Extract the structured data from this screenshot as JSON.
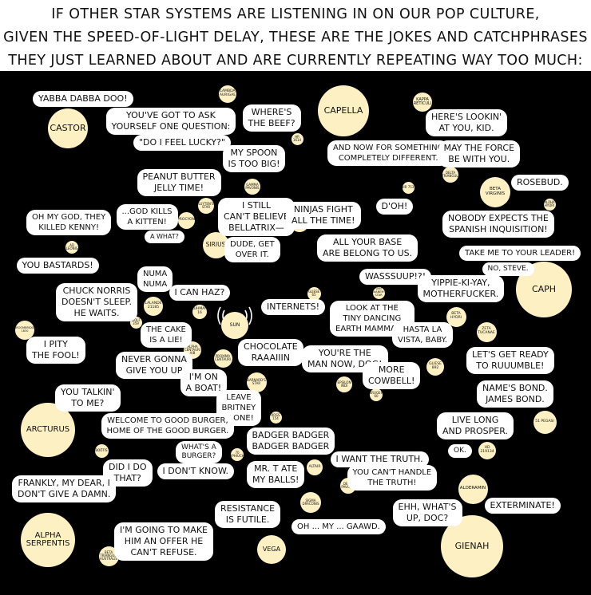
{
  "title": {
    "lines": [
      "If other star systems are listening in on our pop culture,",
      "given the speed-of-light delay,  these are the jokes and catchphrases",
      "they just learned about and are currently repeating way too much:"
    ]
  },
  "stars": [
    {
      "id": "castor",
      "name": "Castor"
    },
    {
      "id": "lambda-aurigae",
      "name": "Lambda Aurigae"
    },
    {
      "id": "capella",
      "name": "Capella"
    },
    {
      "id": "kappa-reticuli",
      "name": "Kappa Reticuli"
    },
    {
      "id": "hr-1614",
      "name": "HR 1614"
    },
    {
      "id": "gamma-pavonis",
      "name": "Gamma Pavonis"
    },
    {
      "id": "delta-trianguli",
      "name": "Delta Trianguli"
    },
    {
      "id": "beta-virginis",
      "name": "Beta Virginis"
    },
    {
      "id": "hr-753",
      "name": "HR 753"
    },
    {
      "id": "alpha-hydri",
      "name": "Alpha Hydri"
    },
    {
      "id": "luyten-star",
      "name": "Luyten's Star"
    },
    {
      "id": "procyon",
      "name": "Procyon"
    },
    {
      "id": "sirius",
      "name": "Sirius"
    },
    {
      "id": "epsilon-eridani",
      "name": "Epsilon Eridani"
    },
    {
      "id": "ad-leonis",
      "name": "AD Leonis"
    },
    {
      "id": "tau-ceti",
      "name": "Tau Ceti"
    },
    {
      "id": "van-maanen-star",
      "name": "Van Maanen's Star"
    },
    {
      "id": "caph",
      "name": "Caph"
    },
    {
      "id": "lalande-21185",
      "name": "Lalande 21185"
    },
    {
      "id": "luhman-16",
      "name": "Luhman 16"
    },
    {
      "id": "wolf-359",
      "name": "Wolf 359"
    },
    {
      "id": "gliese-65",
      "name": "Gliese 65"
    },
    {
      "id": "gliese-1",
      "name": "Gliese 1"
    },
    {
      "id": "beta-hydri",
      "name": "Beta Hydri"
    },
    {
      "id": "sun",
      "name": "Sun"
    },
    {
      "id": "groombridge-1830",
      "name": "Groombridge 1830"
    },
    {
      "id": "alpha-centauri",
      "name": "Alpha Centauri A/B"
    },
    {
      "id": "proxima-centauri",
      "name": "Proxima Centauri"
    },
    {
      "id": "zeta-tucanae",
      "name": "Zeta Tucanae"
    },
    {
      "id": "barnard-star",
      "name": "Barnard's Star"
    },
    {
      "id": "epsilon-indi",
      "name": "Epsilon Indi"
    },
    {
      "id": "kruger-60",
      "name": "Kruger 60"
    },
    {
      "id": "gliese-892",
      "name": "Gliese 892"
    },
    {
      "id": "arcturus",
      "name": "Arcturus"
    },
    {
      "id": "ross-154",
      "name": "Ross 154"
    },
    {
      "id": "51-pegasi",
      "name": "51 Pegasi"
    },
    {
      "id": "bootis",
      "name": "Boötis"
    },
    {
      "id": "70-ophiuchi",
      "name": "70 Ophiuchi"
    },
    {
      "id": "hd-219134",
      "name": "HD 219134"
    },
    {
      "id": "altair",
      "name": "Altair"
    },
    {
      "id": "delta-pavonis",
      "name": "Delta Pavonis"
    },
    {
      "id": "alderamin",
      "name": "Alderamin"
    },
    {
      "id": "sigma-draconis",
      "name": "Sigma Draconis"
    },
    {
      "id": "alpha-serpentis",
      "name": "Alpha Serpentis"
    },
    {
      "id": "beta-trianguli-australis",
      "name": "Beta Trianguli Australis"
    },
    {
      "id": "vega",
      "name": "Vega"
    },
    {
      "id": "gienah",
      "name": "Gienah"
    }
  ],
  "quotes": [
    {
      "id": "yabba",
      "lines": [
        "Yabba dabba doo!"
      ]
    },
    {
      "id": "ask-yourself",
      "lines": [
        "You've got to ask",
        "yourself one question:"
      ]
    },
    {
      "id": "feel-lucky",
      "lines": [
        "\"Do I feel lucky?\""
      ]
    },
    {
      "id": "wheres-beef",
      "lines": [
        "Where's",
        "the beef?"
      ]
    },
    {
      "id": "heres-looking",
      "lines": [
        "Here's lookin'",
        "at you, kid."
      ]
    },
    {
      "id": "something-different",
      "lines": [
        "And now for something",
        "completely different."
      ]
    },
    {
      "id": "may-force",
      "lines": [
        "May the force",
        "be with you."
      ]
    },
    {
      "id": "spoon",
      "lines": [
        "My spoon",
        "is too big!"
      ]
    },
    {
      "id": "peanut-butter",
      "lines": [
        "Peanut butter",
        "jelly time!"
      ]
    },
    {
      "id": "rosebud",
      "lines": [
        "Rosebud."
      ]
    },
    {
      "id": "i-still",
      "lines": [
        "I still",
        "can't believe",
        "Bellatrix—"
      ]
    },
    {
      "id": "ninjas",
      "lines": [
        "Ninjas fight",
        "all the time!"
      ]
    },
    {
      "id": "doh",
      "lines": [
        "D'oh!"
      ]
    },
    {
      "id": "kills-kitten",
      "lines": [
        "...God kills",
        "a kitten!"
      ]
    },
    {
      "id": "killed-kenny",
      "lines": [
        "Oh my God, they",
        "killed Kenny!"
      ]
    },
    {
      "id": "spanish-inquisition",
      "lines": [
        "Nobody expects the",
        "Spanish Inquisition!"
      ]
    },
    {
      "id": "a-what",
      "lines": [
        "A what?"
      ]
    },
    {
      "id": "dude-get-over",
      "lines": [
        "Dude, get",
        "over it."
      ]
    },
    {
      "id": "all-your-base",
      "lines": [
        "All your base",
        "are belong to us."
      ]
    },
    {
      "id": "take-me-leader",
      "lines": [
        "Take me to your leader!"
      ]
    },
    {
      "id": "bastards",
      "lines": [
        "You bastards!"
      ]
    },
    {
      "id": "no-steve",
      "lines": [
        "No, Steve."
      ]
    },
    {
      "id": "numa",
      "lines": [
        "Numa",
        "Numa"
      ]
    },
    {
      "id": "wasssuup",
      "lines": [
        "Wasssuup!?!"
      ]
    },
    {
      "id": "yippie",
      "lines": [
        "Yippie-ki-yay,",
        "motherfucker."
      ]
    },
    {
      "id": "chuck-norris",
      "lines": [
        "Chuck Norris",
        "doesn't sleep.",
        "He waits."
      ]
    },
    {
      "id": "can-haz",
      "lines": [
        "I can haz?"
      ]
    },
    {
      "id": "internets",
      "lines": [
        "Internets!"
      ]
    },
    {
      "id": "tiny-earth",
      "lines": [
        "Look at the",
        "tiny dancing",
        "earth mammals!"
      ]
    },
    {
      "id": "hasta-la-vista",
      "lines": [
        "Hasta la",
        "vista, baby."
      ]
    },
    {
      "id": "cake-lie",
      "lines": [
        "The cake",
        "is a lie!"
      ]
    },
    {
      "id": "pity-fool",
      "lines": [
        "I pity",
        "the fool!"
      ]
    },
    {
      "id": "chocolate-rain",
      "lines": [
        "Chocolate",
        "Raaaiiin"
      ]
    },
    {
      "id": "rumble",
      "lines": [
        "Let's get ready",
        "to ruuumble!"
      ]
    },
    {
      "id": "never-gonna",
      "lines": [
        "Never gonna",
        "give you up"
      ]
    },
    {
      "id": "man-now-dog",
      "lines": [
        "You're the",
        "man now, dog!"
      ]
    },
    {
      "id": "more-cowbell",
      "lines": [
        "More",
        "cowbell!"
      ]
    },
    {
      "id": "on-a-boat",
      "lines": [
        "I'm on",
        "a boat!"
      ]
    },
    {
      "id": "bond",
      "lines": [
        "Name's Bond.",
        "James Bond."
      ]
    },
    {
      "id": "talkin-to-me",
      "lines": [
        "You talkin'",
        "to me?"
      ]
    },
    {
      "id": "leave-britney",
      "lines": [
        "Leave",
        "Britney",
        "alone!"
      ]
    },
    {
      "id": "good-burger",
      "lines": [
        "Welcome to Good Burger,",
        "home of the Good Burger."
      ]
    },
    {
      "id": "live-long",
      "lines": [
        "Live long",
        "and prosper."
      ]
    },
    {
      "id": "badger",
      "lines": [
        "Badger Badger",
        "Badger Badger"
      ]
    },
    {
      "id": "ok",
      "lines": [
        "OK."
      ]
    },
    {
      "id": "whats-a-burger",
      "lines": [
        "What's a",
        "burger?"
      ]
    },
    {
      "id": "dont-know",
      "lines": [
        "I don't know."
      ]
    },
    {
      "id": "did-i-do-that",
      "lines": [
        "Did I do",
        "that?"
      ]
    },
    {
      "id": "want-truth",
      "lines": [
        "I want the truth."
      ]
    },
    {
      "id": "mr-t-balls",
      "lines": [
        "Mr. T ate",
        "my balls!"
      ]
    },
    {
      "id": "cant-handle-truth",
      "lines": [
        "You can't handle",
        "the truth!"
      ]
    },
    {
      "id": "frankly",
      "lines": [
        "Frankly, my dear, I",
        "don't give a damn."
      ]
    },
    {
      "id": "exterminate",
      "lines": [
        "Exterminate!"
      ]
    },
    {
      "id": "resistance",
      "lines": [
        "Resistance",
        "is futile."
      ]
    },
    {
      "id": "whats-up-doc",
      "lines": [
        "Ehh, what's",
        "up, doc?"
      ]
    },
    {
      "id": "oh-my-gawd",
      "lines": [
        "Oh ... my ... gaawd."
      ]
    },
    {
      "id": "offer",
      "lines": [
        "I'm going to make",
        "him an offer he",
        "can't refuse."
      ]
    }
  ],
  "colors": {
    "sky": "#000000",
    "star": "#fdf1c4",
    "bubble": "#ffffff",
    "ink": "#111111"
  }
}
